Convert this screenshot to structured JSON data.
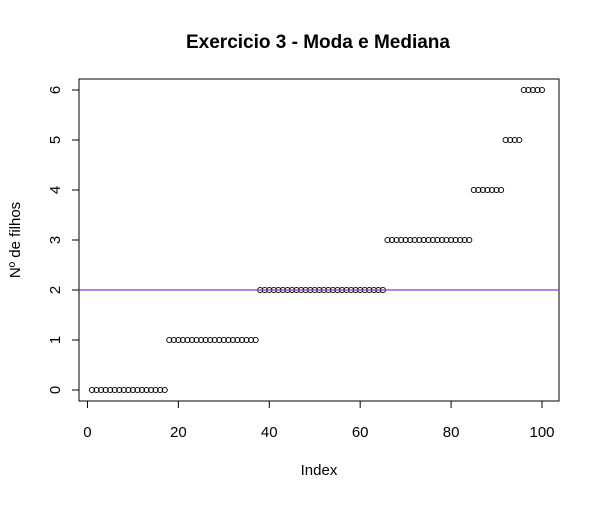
{
  "chart_data": {
    "type": "scatter",
    "title": "Exercicio 3 - Moda e Mediana",
    "xlabel": "Index",
    "ylabel": "Nº de filhos",
    "xlim": [
      1,
      100
    ],
    "ylim": [
      0,
      6
    ],
    "x_ticks": [
      "0",
      "20",
      "40",
      "60",
      "80",
      "100"
    ],
    "y_ticks": [
      "0",
      "1",
      "2",
      "3",
      "4",
      "5",
      "6"
    ],
    "grid": false,
    "legend": "none",
    "point_style": "open-circle",
    "counts_by_value": [
      {
        "value": 0,
        "count": 17
      },
      {
        "value": 1,
        "count": 20
      },
      {
        "value": 2,
        "count": 28
      },
      {
        "value": 3,
        "count": 19
      },
      {
        "value": 4,
        "count": 7
      },
      {
        "value": 5,
        "count": 4
      },
      {
        "value": 6,
        "count": 5
      }
    ],
    "reference_line": {
      "orientation": "horizontal",
      "y": 2,
      "color": "#9933cc"
    }
  }
}
